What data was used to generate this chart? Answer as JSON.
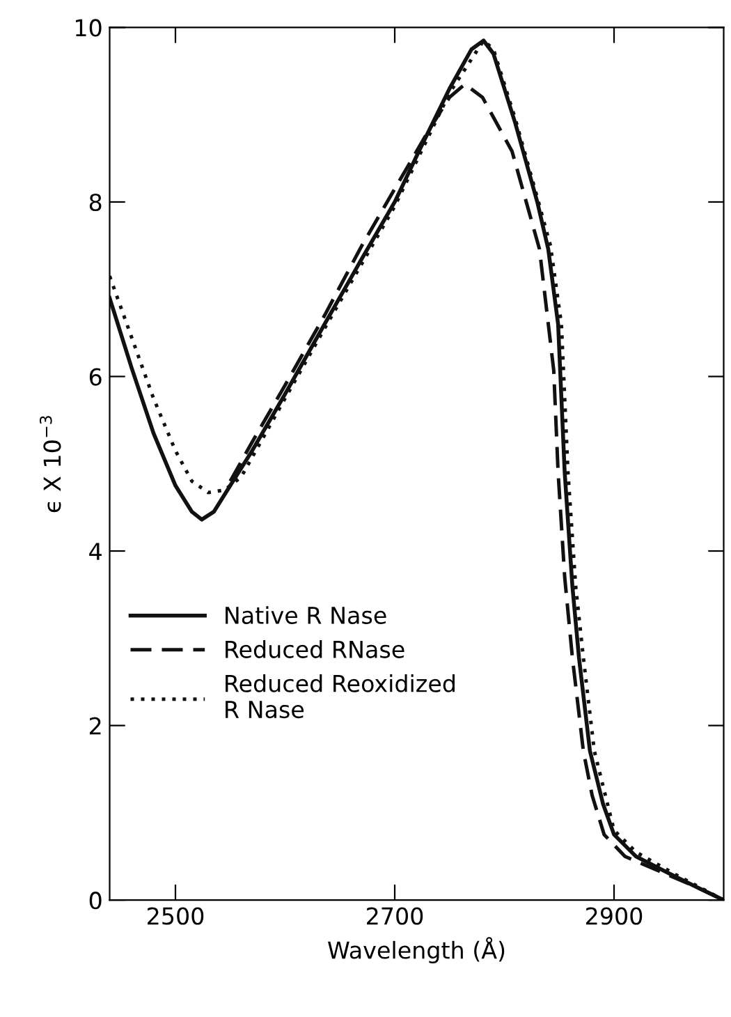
{
  "chart_data": {
    "type": "line",
    "xlabel": "Wavelength (Å)",
    "ylabel": "ϵ X 10$^{−3}$",
    "xlim": [
      2440,
      3000
    ],
    "ylim": [
      0,
      10
    ],
    "xticks": [
      2500,
      2700,
      2900
    ],
    "yticks": [
      0,
      2,
      4,
      6,
      8,
      10
    ],
    "legend": "left",
    "grid": false,
    "marker": "none",
    "series": [
      {
        "name": "Native R Nase",
        "color": "#111111",
        "line_style": "solid",
        "x": [
          2440,
          2460,
          2480,
          2500,
          2515,
          2524,
          2535,
          2550,
          2570,
          2600,
          2636,
          2670,
          2700,
          2722,
          2750,
          2770,
          2781,
          2790,
          2810,
          2830,
          2840,
          2849,
          2855,
          2862,
          2868,
          2878,
          2890,
          2900,
          2920,
          2951,
          2975,
          3000
        ],
        "values": [
          6.9,
          6.1,
          5.35,
          4.75,
          4.45,
          4.36,
          4.45,
          4.75,
          5.15,
          5.8,
          6.6,
          7.35,
          8.0,
          8.58,
          9.3,
          9.75,
          9.85,
          9.7,
          8.9,
          8.0,
          7.46,
          6.6,
          4.9,
          3.6,
          2.78,
          1.71,
          1.1,
          0.75,
          0.5,
          0.3,
          0.15,
          0.0
        ]
      },
      {
        "name": "Reduced RNase",
        "color": "#111111",
        "line_style": "dashed",
        "x": [
          2550,
          2570,
          2600,
          2636,
          2670,
          2700,
          2730,
          2750,
          2764,
          2780,
          2807,
          2832,
          2845,
          2849,
          2855,
          2862,
          2872,
          2880,
          2891,
          2910,
          2947,
          2975,
          3000
        ],
        "values": [
          4.8,
          5.25,
          5.9,
          6.7,
          7.5,
          8.15,
          8.8,
          9.2,
          9.35,
          9.2,
          8.58,
          7.46,
          6.07,
          4.9,
          3.7,
          2.78,
          1.71,
          1.2,
          0.75,
          0.5,
          0.3,
          0.15,
          0.0
        ]
      },
      {
        "name": "Reduced Reoxidized\nR Nase",
        "color": "#111111",
        "line_style": "dotted",
        "x": [
          2440,
          2460,
          2480,
          2500,
          2515,
          2530,
          2545,
          2560,
          2600,
          2636,
          2700,
          2750,
          2781,
          2790,
          2810,
          2830,
          2842,
          2852,
          2858,
          2865,
          2872,
          2882,
          2900,
          2920,
          2955,
          3000
        ],
        "values": [
          7.15,
          6.45,
          5.75,
          5.15,
          4.8,
          4.67,
          4.7,
          4.85,
          5.75,
          6.55,
          7.95,
          9.25,
          9.85,
          9.75,
          8.95,
          8.05,
          7.5,
          6.6,
          4.9,
          3.6,
          2.78,
          1.71,
          0.8,
          0.55,
          0.3,
          0.0
        ]
      }
    ]
  }
}
